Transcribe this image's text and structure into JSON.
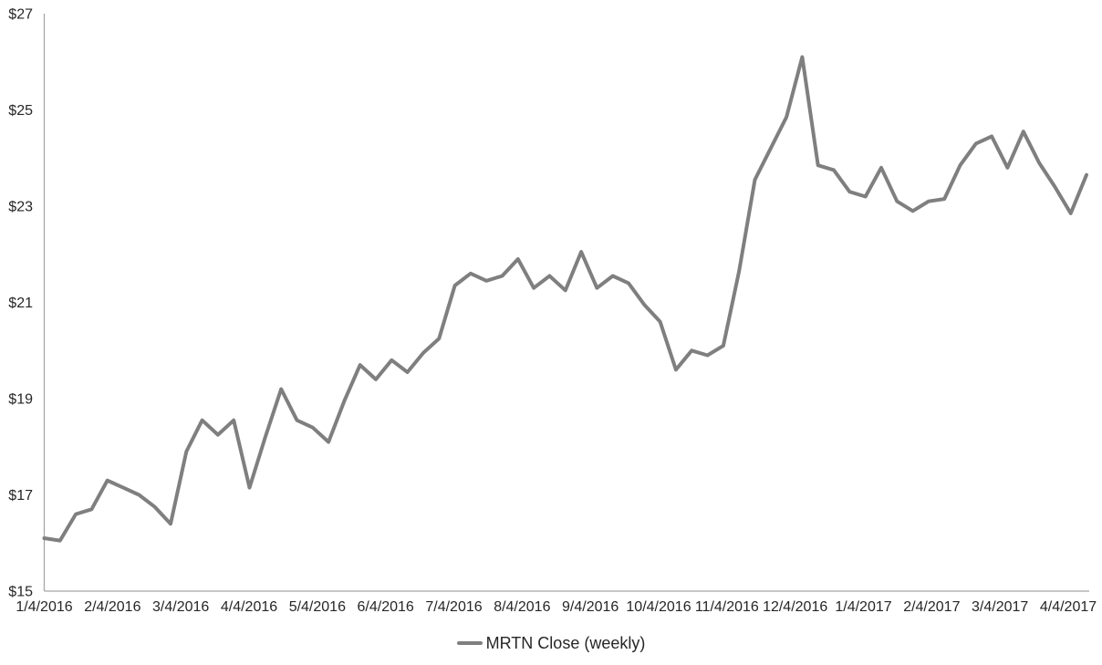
{
  "chart_data": {
    "type": "line",
    "title": "",
    "legend": {
      "label": "MRTN Close (weekly)",
      "position": "bottom-center"
    },
    "series": [
      {
        "name": "MRTN Close (weekly)",
        "frequency": "weekly",
        "start_date": "1/4/2016",
        "values": [
          16.1,
          16.05,
          16.6,
          16.7,
          17.3,
          17.15,
          17.0,
          16.75,
          16.4,
          17.9,
          18.55,
          18.25,
          18.55,
          17.15,
          18.2,
          19.2,
          18.55,
          18.4,
          18.1,
          18.95,
          19.7,
          19.4,
          19.8,
          19.55,
          19.95,
          20.25,
          21.35,
          21.6,
          21.45,
          21.55,
          21.9,
          21.3,
          21.55,
          21.25,
          22.05,
          21.3,
          21.55,
          21.4,
          20.95,
          20.6,
          19.6,
          20.0,
          19.9,
          20.1,
          21.65,
          23.55,
          24.2,
          24.85,
          26.1,
          23.85,
          23.75,
          23.3,
          23.2,
          23.8,
          23.1,
          22.9,
          23.1,
          23.15,
          23.85,
          24.3,
          24.45,
          23.8,
          24.55,
          23.9,
          23.4,
          22.85,
          23.65
        ]
      }
    ],
    "x_axis": {
      "tick_labels": [
        "1/4/2016",
        "2/4/2016",
        "3/4/2016",
        "4/4/2016",
        "5/4/2016",
        "6/4/2016",
        "7/4/2016",
        "8/4/2016",
        "9/4/2016",
        "10/4/2016",
        "11/4/2016",
        "12/4/2016",
        "1/4/2017",
        "2/4/2017",
        "3/4/2017",
        "4/4/2017"
      ],
      "label": ""
    },
    "y_axis": {
      "tick_labels": [
        "$27",
        "$25",
        "$23",
        "$21",
        "$19",
        "$17",
        "$15"
      ],
      "tick_values": [
        27,
        25,
        23,
        21,
        19,
        17,
        15
      ],
      "min": 15,
      "max": 27,
      "label": ""
    },
    "grid": "off",
    "colors": {
      "line": "#7f7f7f",
      "axis": "#a6a6a6",
      "tick_text": "#262626"
    }
  }
}
